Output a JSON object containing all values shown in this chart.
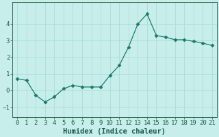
{
  "x": [
    0,
    1,
    2,
    3,
    4,
    5,
    6,
    7,
    8,
    9,
    10,
    11,
    12,
    13,
    14,
    15,
    16,
    17,
    18,
    19,
    20,
    21
  ],
  "y": [
    0.7,
    0.6,
    -0.3,
    -0.7,
    -0.4,
    0.1,
    0.3,
    0.2,
    0.2,
    0.2,
    0.9,
    1.5,
    2.6,
    4.0,
    4.6,
    3.3,
    3.2,
    3.05,
    3.05,
    2.95,
    2.85,
    2.7
  ],
  "line_color": "#1a7a6a",
  "marker": "D",
  "marker_size": 2.5,
  "bg_color": "#c8eeec",
  "grid_color": "#aaddda",
  "spine_color": "#336655",
  "tick_label_color": "#1a5a4a",
  "xlabel": "Humidex (Indice chaleur)",
  "xlabel_fontsize": 7.5,
  "xlim": [
    -0.5,
    21.5
  ],
  "ylim": [
    -1.6,
    5.3
  ],
  "yticks": [
    -1,
    0,
    1,
    2,
    3,
    4
  ],
  "xticks": [
    0,
    1,
    2,
    3,
    4,
    5,
    6,
    7,
    8,
    9,
    10,
    11,
    12,
    13,
    14,
    15,
    16,
    17,
    18,
    19,
    20,
    21
  ],
  "tick_fontsize": 6.5
}
